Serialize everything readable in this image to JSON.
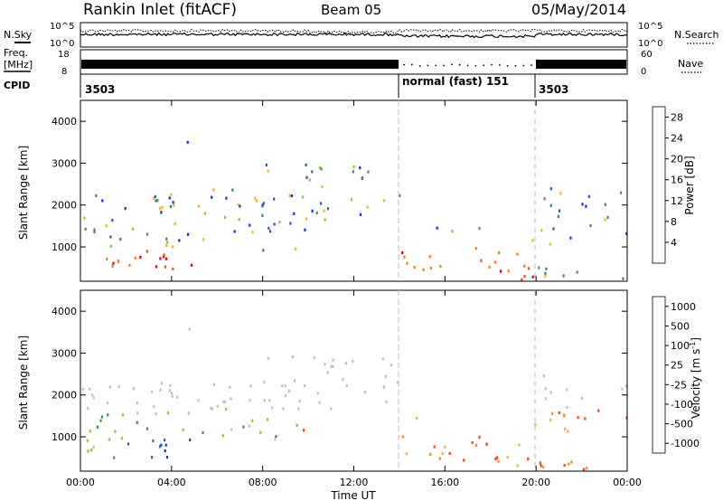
{
  "header": {
    "title": "Rankin Inlet (fitACF)",
    "beam": "Beam 05",
    "date": "05/May/2014"
  },
  "status_panels": {
    "nsky_label": "N.Sky",
    "nsearch_label": "N.Search",
    "noise_ticks": [
      "10^5",
      "10^0"
    ],
    "freq_label_line1": "Freq.",
    "freq_label_line2": "[MHz]",
    "freq_ticks": [
      "18",
      "8"
    ],
    "nave_label": "Nave",
    "nave_ticks": [
      "60",
      "0"
    ],
    "cpid_label": "CPID",
    "cpid_segments": [
      {
        "label": "3503",
        "start_hour": 0,
        "end_hour": 14
      },
      {
        "label": "normal (fast) 151",
        "start_hour": 14,
        "end_hour": 20
      },
      {
        "label": "3503",
        "start_hour": 20,
        "end_hour": 24
      }
    ]
  },
  "colors": {
    "power_scale": [
      "#1a28f0",
      "#2a57b8",
      "#3e7e86",
      "#4e9a5c",
      "#8ec63a",
      "#f3b71c",
      "#f77f0e",
      "#ef5010",
      "#e0001c"
    ],
    "velocity_scale": [
      "#e80000",
      "#f04a10",
      "#f58c1a",
      "#f4b050",
      "#c0c0b8",
      "#8ec63a",
      "#3f8f5a",
      "#2f6aa8",
      "#1a3ab8"
    ]
  },
  "chart_data": [
    {
      "type": "heatmap",
      "name": "power",
      "ylabel": "Slant Range [km]",
      "y_ticks": [
        1000,
        2000,
        3000,
        4000
      ],
      "ylim": [
        180,
        4500
      ],
      "xlim": [
        0,
        24
      ],
      "colorbar_label": "Power [dB]",
      "colorbar_ticks": [
        "4",
        "8",
        "12",
        "16",
        "20",
        "24",
        "28"
      ],
      "colorbar_range": [
        0,
        30
      ]
    },
    {
      "type": "heatmap",
      "name": "velocity",
      "ylabel": "Slant Range [km]",
      "y_ticks": [
        1000,
        2000,
        3000,
        4000
      ],
      "ylim": [
        180,
        4500
      ],
      "xlim": [
        0,
        24
      ],
      "colorbar_label": "Velocity [m s",
      "colorbar_label_sup": "-1",
      "colorbar_label_end": "]",
      "colorbar_ticks": [
        "1000",
        "500",
        "100",
        "25",
        "-25",
        "-100",
        "-500",
        "-1000"
      ],
      "x_ticks": [
        "00:00",
        "04:00",
        "08:00",
        "12:00",
        "16:00",
        "20:00",
        "00:00"
      ],
      "xlabel": "Time UT"
    }
  ]
}
